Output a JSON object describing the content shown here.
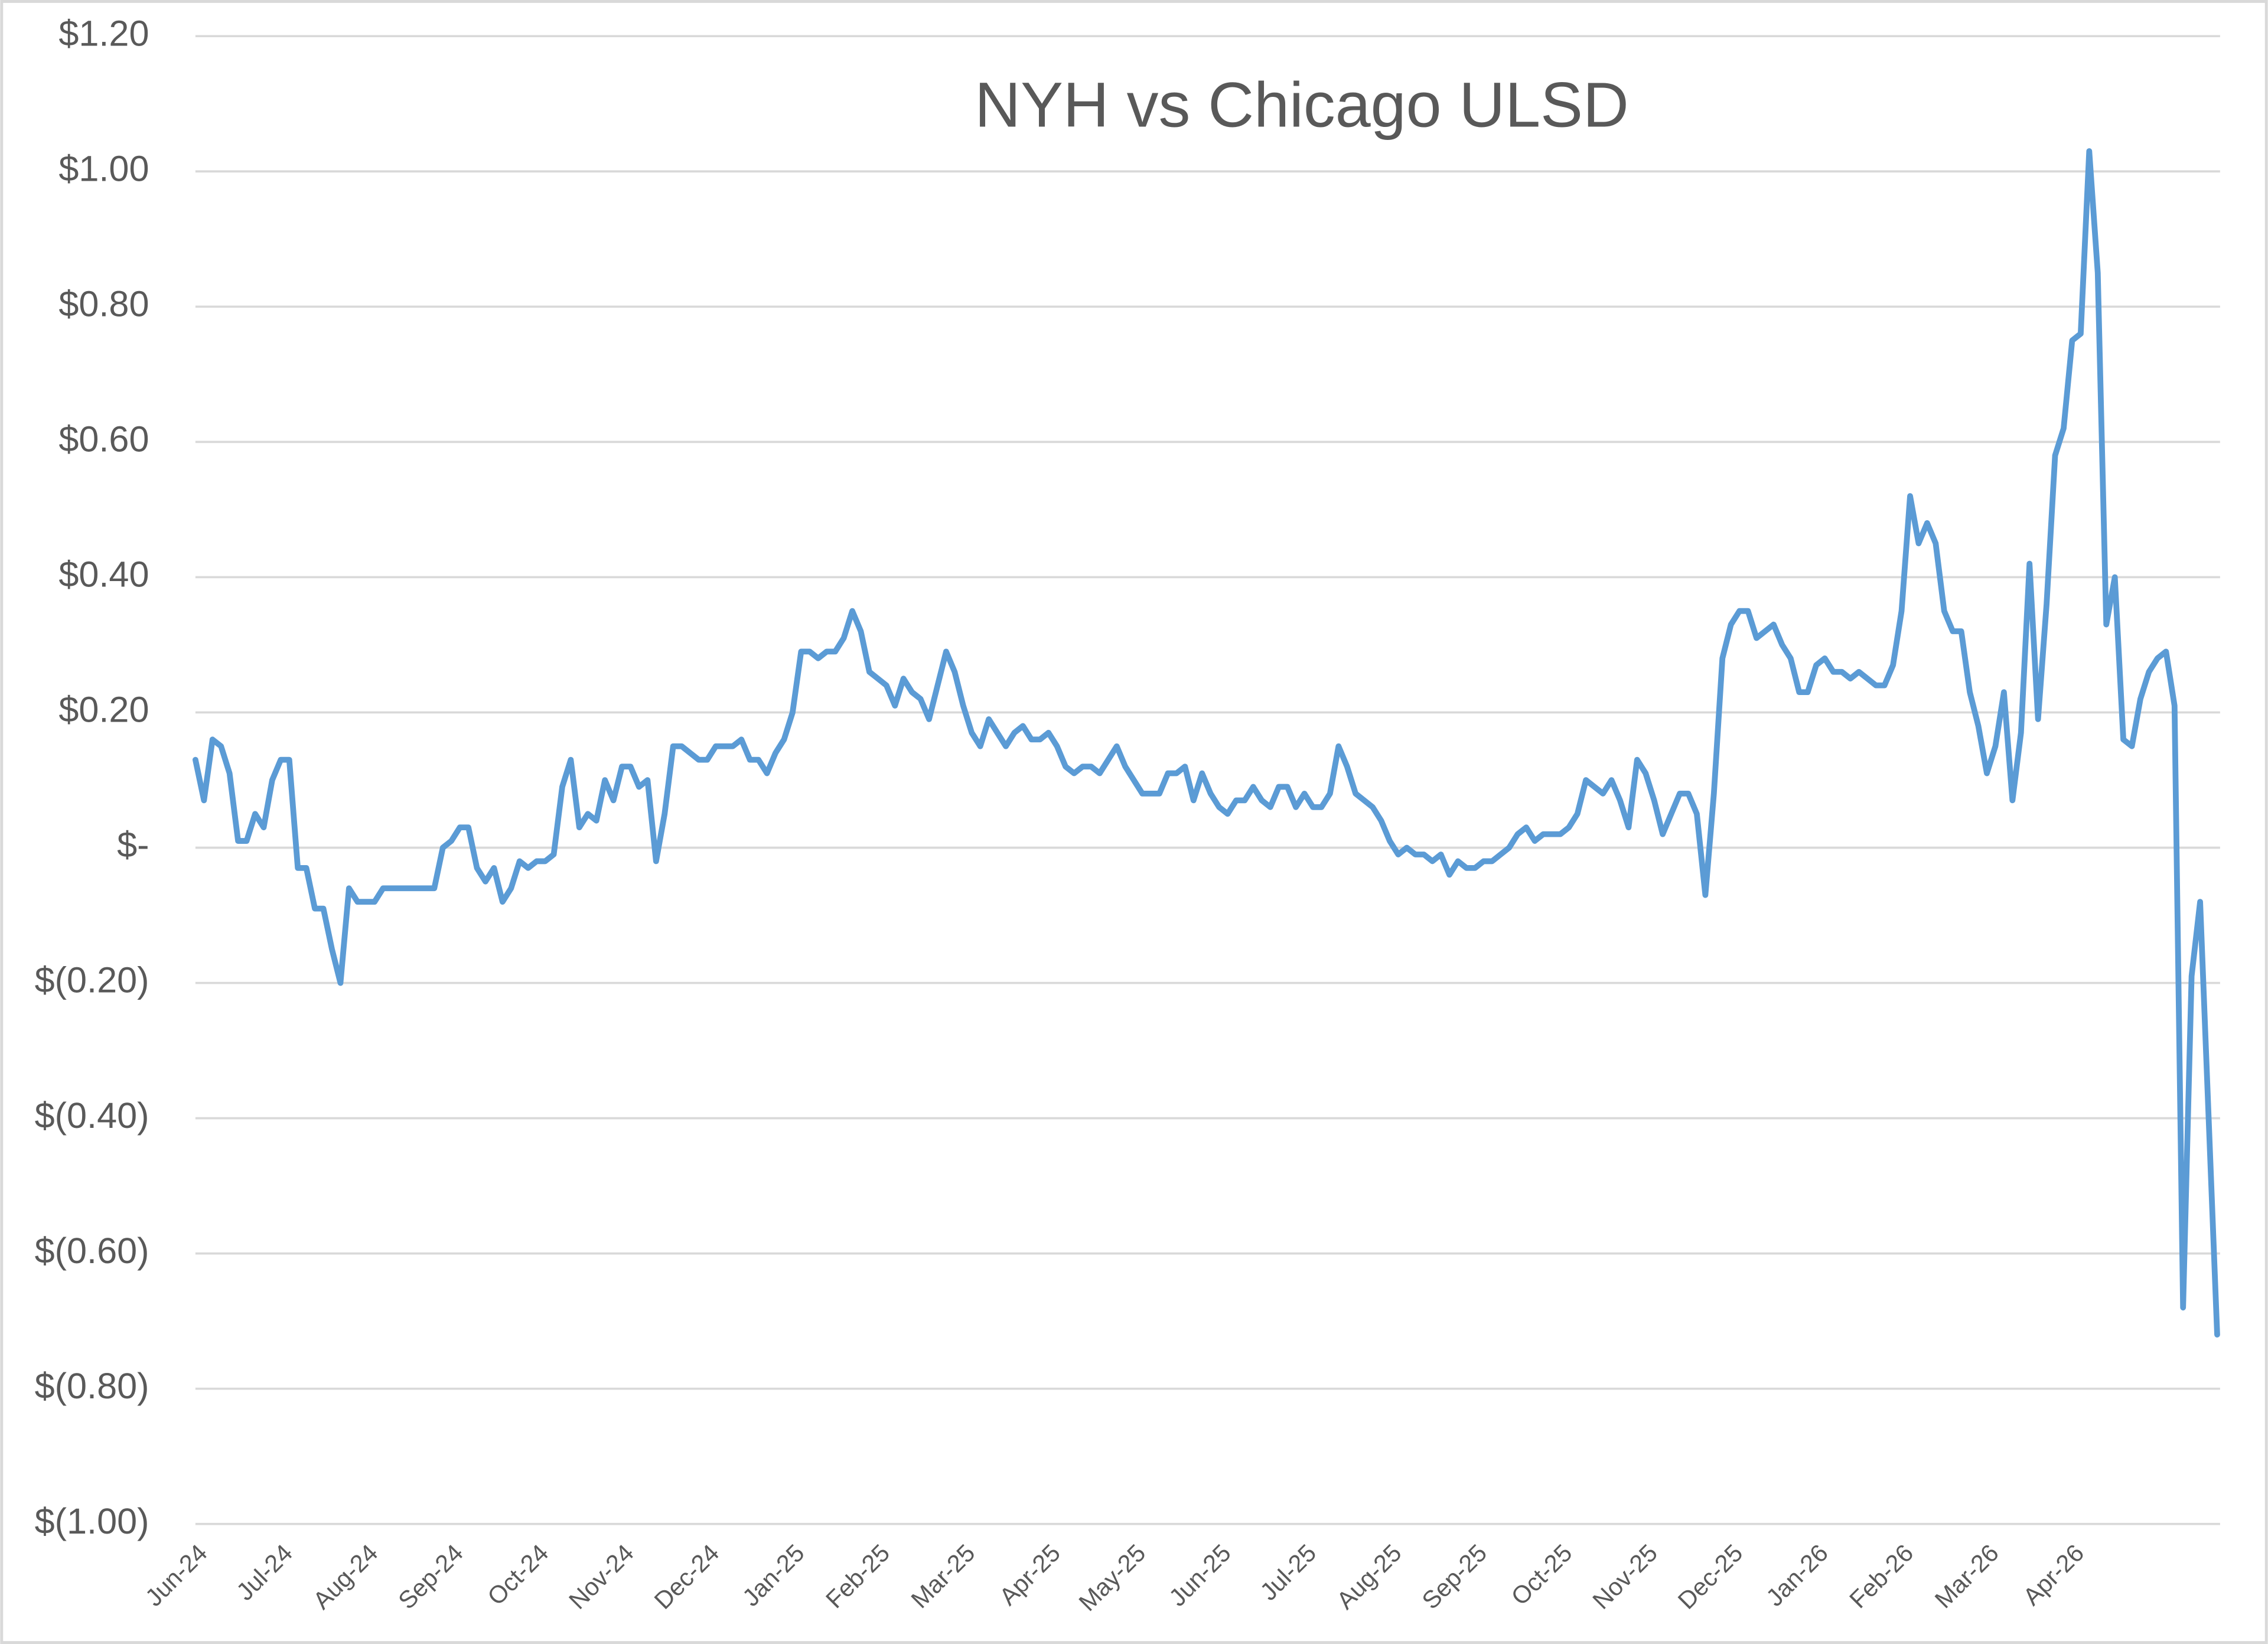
{
  "chart_data": {
    "type": "line",
    "title": "NYH vs Chicago ULSD",
    "categories": [
      "Jun-24",
      null,
      null,
      null,
      null,
      null,
      null,
      null,
      null,
      null,
      "Jul-24",
      null,
      null,
      null,
      null,
      null,
      null,
      null,
      null,
      null,
      "Aug-24",
      null,
      null,
      null,
      null,
      null,
      null,
      null,
      null,
      null,
      "Sep-24",
      null,
      null,
      null,
      null,
      null,
      null,
      null,
      null,
      null,
      "Oct-24",
      null,
      null,
      null,
      null,
      null,
      null,
      null,
      null,
      null,
      "Nov-24",
      null,
      null,
      null,
      null,
      null,
      null,
      null,
      null,
      null,
      "Dec-24",
      null,
      null,
      null,
      null,
      null,
      null,
      null,
      null,
      null,
      "Jan-25",
      null,
      null,
      null,
      null,
      null,
      null,
      null,
      null,
      null,
      "Feb-25",
      null,
      null,
      null,
      null,
      null,
      null,
      null,
      null,
      null,
      "Mar-25",
      null,
      null,
      null,
      null,
      null,
      null,
      null,
      null,
      null,
      "Apr-25",
      null,
      null,
      null,
      null,
      null,
      null,
      null,
      null,
      null,
      "May-25",
      null,
      null,
      null,
      null,
      null,
      null,
      null,
      null,
      null,
      "Jun-25",
      null,
      null,
      null,
      null,
      null,
      null,
      null,
      null,
      null,
      "Jul-25",
      null,
      null,
      null,
      null,
      null,
      null,
      null,
      null,
      null,
      "Aug-25",
      null,
      null,
      null,
      null,
      null,
      null,
      null,
      null,
      null,
      "Sep-25",
      null,
      null,
      null,
      null,
      null,
      null,
      null,
      null,
      null,
      "Oct-25",
      null,
      null,
      null,
      null,
      null,
      null,
      null,
      null,
      null,
      "Nov-25",
      null,
      null,
      null,
      null,
      null,
      null,
      null,
      null,
      null,
      "Dec-25",
      null,
      null,
      null,
      null,
      null,
      null,
      null,
      null,
      null,
      "Jan-26",
      null,
      null,
      null,
      null,
      null,
      null,
      null,
      null,
      null,
      "Feb-26",
      null,
      null,
      null,
      null,
      null,
      null,
      null,
      null,
      null,
      "Mar-26",
      null,
      null,
      null,
      null,
      null,
      null,
      null,
      null,
      null,
      "Apr-26",
      null,
      null,
      null,
      null,
      null,
      null,
      null,
      null,
      null,
      null,
      null,
      null,
      null,
      null,
      null,
      null,
      null
    ],
    "values": [
      0.13,
      0.07,
      0.16,
      0.15,
      0.11,
      0.01,
      0.01,
      0.05,
      0.03,
      0.1,
      0.13,
      0.13,
      -0.03,
      -0.03,
      -0.09,
      -0.09,
      -0.15,
      -0.2,
      -0.06,
      -0.08,
      -0.08,
      -0.08,
      -0.06,
      -0.06,
      -0.06,
      -0.06,
      -0.06,
      -0.06,
      -0.06,
      0,
      0.01,
      0.03,
      0.03,
      -0.03,
      -0.05,
      -0.03,
      -0.08,
      -0.06,
      -0.02,
      -0.03,
      -0.02,
      -0.02,
      -0.01,
      0.09,
      0.13,
      0.03,
      0.05,
      0.04,
      0.1,
      0.07,
      0.12,
      0.12,
      0.09,
      0.1,
      -0.02,
      0.05,
      0.15,
      0.15,
      0.14,
      0.13,
      0.13,
      0.15,
      0.15,
      0.15,
      0.16,
      0.13,
      0.13,
      0.11,
      0.14,
      0.16,
      0.2,
      0.29,
      0.29,
      0.28,
      0.29,
      0.29,
      0.31,
      0.35,
      0.32,
      0.26,
      0.25,
      0.24,
      0.21,
      0.25,
      0.23,
      0.22,
      0.19,
      0.24,
      0.29,
      0.26,
      0.21,
      0.17,
      0.15,
      0.19,
      0.17,
      0.15,
      0.17,
      0.18,
      0.16,
      0.16,
      0.17,
      0.15,
      0.12,
      0.11,
      0.12,
      0.12,
      0.11,
      0.13,
      0.15,
      0.12,
      0.1,
      0.08,
      0.08,
      0.08,
      0.11,
      0.11,
      0.12,
      0.07,
      0.11,
      0.08,
      0.06,
      0.05,
      0.07,
      0.07,
      0.09,
      0.07,
      0.06,
      0.09,
      0.09,
      0.06,
      0.08,
      0.06,
      0.06,
      0.08,
      0.15,
      0.12,
      0.08,
      0.07,
      0.06,
      0.04,
      0.01,
      -0.01,
      0,
      -0.01,
      -0.01,
      -0.02,
      -0.01,
      -0.04,
      -0.02,
      -0.03,
      -0.03,
      -0.02,
      -0.02,
      -0.01,
      0,
      0.02,
      0.03,
      0.01,
      0.02,
      0.02,
      0.02,
      0.03,
      0.05,
      0.1,
      0.09,
      0.08,
      0.1,
      0.07,
      0.03,
      0.13,
      0.11,
      0.07,
      0.02,
      0.05,
      0.08,
      0.08,
      0.05,
      -0.07,
      0.08,
      0.28,
      0.33,
      0.35,
      0.35,
      0.31,
      0.32,
      0.33,
      0.3,
      0.28,
      0.23,
      0.23,
      0.27,
      0.28,
      0.26,
      0.26,
      0.25,
      0.26,
      0.25,
      0.24,
      0.24,
      0.27,
      0.35,
      0.52,
      0.45,
      0.48,
      0.45,
      0.35,
      0.32,
      0.32,
      0.23,
      0.18,
      0.11,
      0.15,
      0.23,
      0.07,
      0.17,
      0.42,
      0.19,
      0.36,
      0.58,
      0.62,
      0.75,
      0.76,
      1.03,
      0.85,
      0.33,
      0.4,
      0.16,
      0.15,
      0.22,
      0.26,
      0.28,
      0.29,
      0.21,
      -0.68,
      -0.19,
      -0.08,
      -0.4,
      -0.72
    ],
    "color": "#5b9bd5",
    "ylim": [
      -1,
      1.2
    ],
    "yticks": [
      {
        "value": -1,
        "label": "$(1.00)"
      },
      {
        "value": -0.8,
        "label": "$(0.80)"
      },
      {
        "value": -0.6,
        "label": "$(0.60)"
      },
      {
        "value": -0.4,
        "label": "$(0.40)"
      },
      {
        "value": -0.2,
        "label": "$(0.20)"
      },
      {
        "value": 0,
        "label": "$-"
      },
      {
        "value": 0.2,
        "label": "$0.20"
      },
      {
        "value": 0.4,
        "label": "$0.40"
      },
      {
        "value": 0.6,
        "label": "$0.60"
      },
      {
        "value": 0.8,
        "label": "$0.80"
      },
      {
        "value": 1,
        "label": "$1.00"
      },
      {
        "value": 1.2,
        "label": "$1.20"
      }
    ],
    "grid": true
  }
}
